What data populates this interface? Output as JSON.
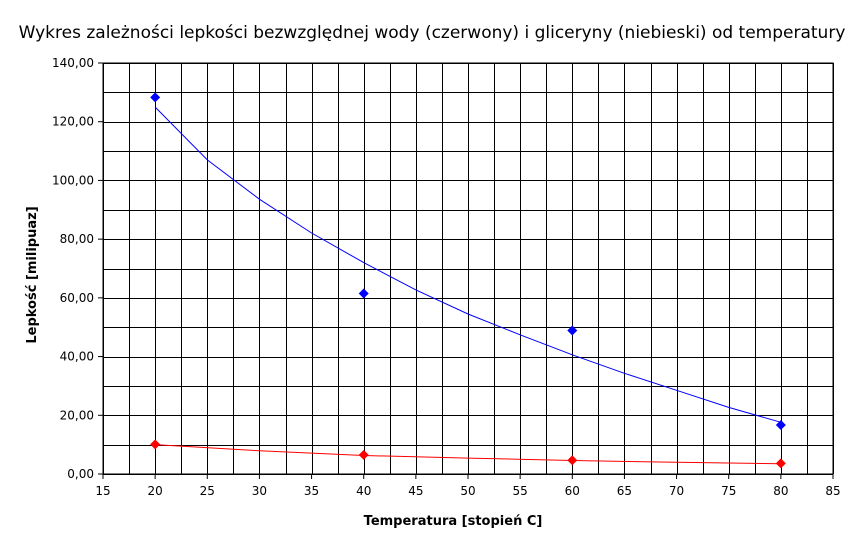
{
  "chart_data": {
    "type": "scatter",
    "title": "Wykres zależności lepkości bezwzględnej wody (czerwony) i gliceryny (niebieski) od temperatury",
    "xlabel": "Temperatura [stopień C]",
    "ylabel": "Lepkość [milipuaz]",
    "xlim": [
      15,
      85
    ],
    "ylim": [
      0,
      140
    ],
    "x_ticks": [
      15,
      20,
      25,
      30,
      35,
      40,
      45,
      50,
      55,
      60,
      65,
      70,
      75,
      80,
      85
    ],
    "y_ticks": [
      "0,00",
      "20,00",
      "40,00",
      "60,00",
      "80,00",
      "100,00",
      "120,00",
      "140,00"
    ],
    "grid": true,
    "trendlines": true,
    "series": [
      {
        "color": "#0000ff",
        "x": [
          20,
          40,
          60,
          80
        ],
        "y": [
          128.3,
          61.5,
          48.9,
          16.7
        ],
        "trend_x": [
          20,
          25,
          30,
          35,
          40,
          45,
          50,
          55,
          60,
          65,
          70,
          75,
          80
        ],
        "trend_y": [
          125.0,
          107.0,
          93.6,
          82.1,
          72.0,
          62.7,
          54.5,
          47.4,
          40.6,
          34.3,
          28.5,
          22.7,
          17.6
        ]
      },
      {
        "color": "#ff0000",
        "x": [
          20,
          40,
          60,
          80
        ],
        "y": [
          10.1,
          6.5,
          4.7,
          3.6
        ],
        "trend_x": [
          20,
          30,
          40,
          50,
          60,
          70,
          80
        ],
        "trend_y": [
          10.0,
          7.9,
          6.3,
          5.4,
          4.6,
          4.0,
          3.5
        ]
      }
    ]
  }
}
